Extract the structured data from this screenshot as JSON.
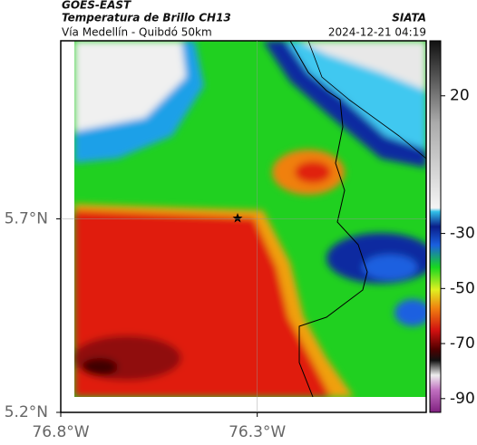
{
  "header": {
    "satellite": "GOES-EAST",
    "product": "Temperatura de Brillo CH13",
    "route": "Vía Medellín - Quibdó 50km",
    "source": "SIATA",
    "timestamp": "2024-12-21 04:19"
  },
  "map": {
    "xlim": [
      -76.8,
      -75.87
    ],
    "ylim": [
      5.2,
      6.16
    ],
    "xticks": [
      {
        "value": -76.8,
        "label": "76.8°W"
      },
      {
        "value": -76.3,
        "label": "76.3°W"
      }
    ],
    "yticks": [
      {
        "value": 5.2,
        "label": "5.2°N"
      },
      {
        "value": 5.7,
        "label": "5.7°N"
      }
    ]
  },
  "colorbar": {
    "lim": [
      -95,
      40
    ],
    "ticks": [
      20,
      -30,
      -50,
      -70,
      -90
    ]
  }
}
